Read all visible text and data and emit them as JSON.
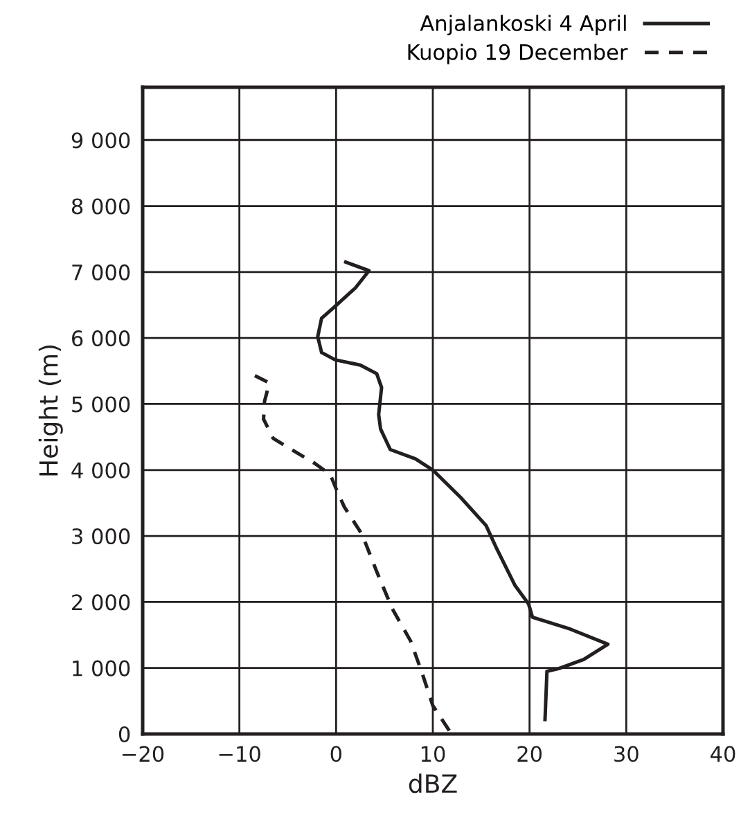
{
  "chart_data": {
    "type": "line",
    "xlabel": "dBZ",
    "ylabel": "Height (m)",
    "xlim": [
      -20,
      40
    ],
    "ylim": [
      0,
      9800
    ],
    "xticks": [
      {
        "value": -20,
        "label": "−20"
      },
      {
        "value": -10,
        "label": "−10"
      },
      0,
      10,
      20,
      30,
      40
    ],
    "yticks": [
      0,
      {
        "value": 1000,
        "label": "1 000"
      },
      {
        "value": 2000,
        "label": "2 000"
      },
      {
        "value": 3000,
        "label": "3 000"
      },
      {
        "value": 4000,
        "label": "4 000"
      },
      {
        "value": 5000,
        "label": "5 000"
      },
      {
        "value": 6000,
        "label": "6 000"
      },
      {
        "value": 7000,
        "label": "7 000"
      },
      {
        "value": 8000,
        "label": "8 000"
      },
      {
        "value": 9000,
        "label": "9 000"
      }
    ],
    "grid": true,
    "legend": "top right",
    "marker": "none",
    "series": [
      {
        "name": "Anjalankoski 4 April",
        "color": "#231f20",
        "line_style": "solid",
        "x": [
          1.0,
          3.4,
          2.0,
          -0.1,
          -1.5,
          -1.9,
          -1.5,
          -0.1,
          2.5,
          4.2,
          4.7,
          4.4,
          4.6,
          5.6,
          8.2,
          10,
          12.9,
          15.5,
          16.6,
          18.5,
          19.9,
          20.3,
          24.2,
          28.1,
          25.6,
          23.0,
          21.8,
          21.6
        ],
        "values": [
          7150,
          7020,
          6760,
          6480,
          6300,
          6020,
          5780,
          5670,
          5590,
          5460,
          5250,
          4840,
          4620,
          4310,
          4170,
          4000,
          3580,
          3160,
          2810,
          2250,
          1970,
          1770,
          1590,
          1360,
          1130,
          990,
          950,
          220
        ]
      },
      {
        "name": "Kuopio 19 December",
        "color": "#231f20",
        "line_style": "dashed",
        "x": [
          -8.4,
          -6.9,
          -7.4,
          -7.5,
          -6.5,
          -4.6,
          -2.2,
          -0.6,
          0.1,
          0.85,
          2.7,
          4.2,
          5.8,
          7.7,
          8.9,
          10.0,
          11.7
        ],
        "values": [
          5430,
          5320,
          5040,
          4770,
          4480,
          4310,
          4100,
          3930,
          3680,
          3440,
          3020,
          2460,
          1900,
          1410,
          920,
          430,
          50
        ]
      }
    ]
  }
}
